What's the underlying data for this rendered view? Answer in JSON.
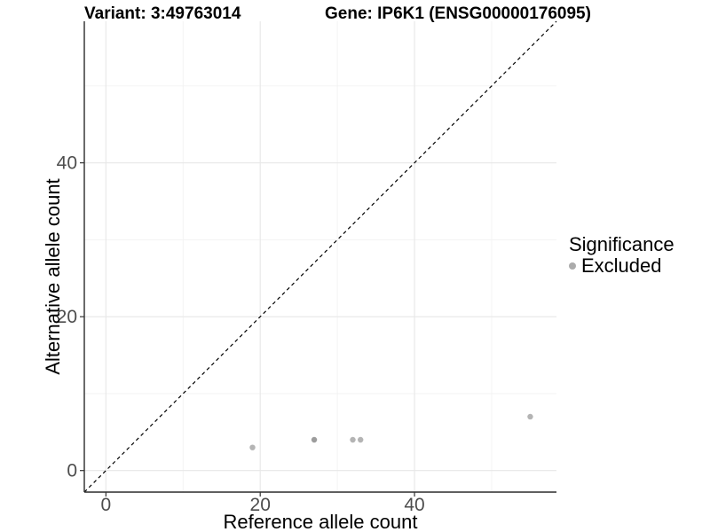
{
  "figure": {
    "title_left": "Variant: 3:49763014",
    "title_right": "Gene: IP6K1 (ENSG00000176095)"
  },
  "chart_data": {
    "type": "scatter",
    "title": "Variant: 3:49763014   Gene: IP6K1 (ENSG00000176095)",
    "xlabel": "Reference allele count",
    "ylabel": "Alternative allele count",
    "xlim": [
      -2.8,
      58.4
    ],
    "ylim": [
      -2.8,
      58.4
    ],
    "x_major_ticks": [
      0,
      20,
      40
    ],
    "x_minor_ticks": [
      10,
      30,
      50
    ],
    "y_major_ticks": [
      0,
      20,
      40
    ],
    "y_minor_ticks": [
      10,
      30,
      50
    ],
    "grid": true,
    "points": [
      {
        "x": 19,
        "y": 3,
        "color": "#b4b4b4"
      },
      {
        "x": 27,
        "y": 4,
        "color": "#9c9c9c"
      },
      {
        "x": 32,
        "y": 4,
        "color": "#b4b4b4"
      },
      {
        "x": 33,
        "y": 4,
        "color": "#b4b4b4"
      },
      {
        "x": 55,
        "y": 7,
        "color": "#b4b4b4"
      }
    ],
    "identity_line": {
      "style": "dashed",
      "from": [
        -2.8,
        -2.8
      ],
      "to": [
        58.4,
        58.4
      ],
      "color": "#000000"
    },
    "legend": {
      "title": "Significance",
      "position": "right",
      "items": [
        {
          "label": "Excluded",
          "color": "#ababab"
        }
      ]
    },
    "colors": {
      "background": "#ffffff",
      "grid_major": "#e7e7e7",
      "grid_minor": "#f1f1f1",
      "axis_line": "#2b2b2b",
      "tick_mark": "#333333",
      "tick_label": "#4d4d4d",
      "point_default": "#b4b4b4"
    }
  }
}
